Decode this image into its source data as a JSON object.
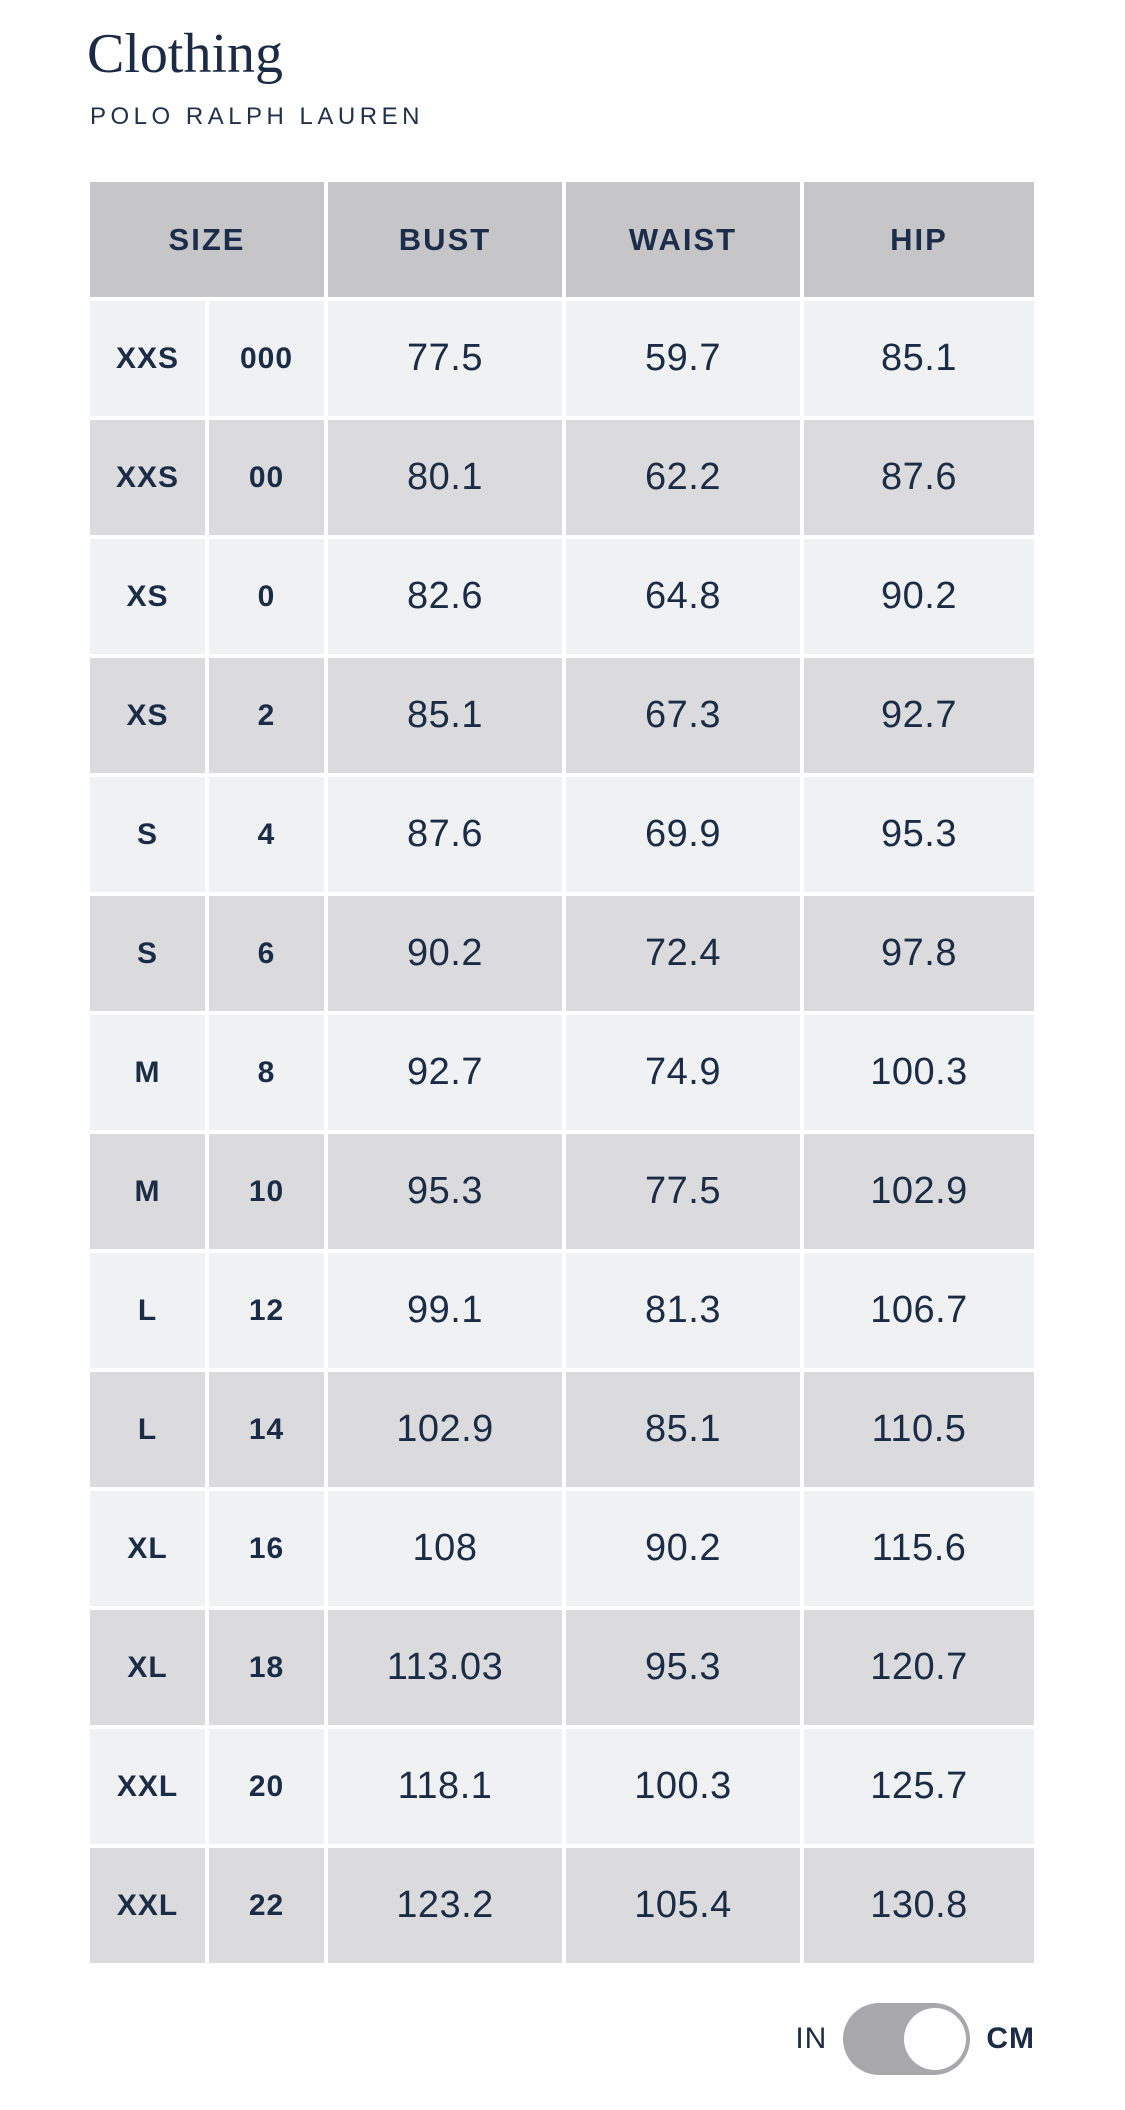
{
  "page": {
    "title": "Clothing",
    "brand": "POLO RALPH LAUREN"
  },
  "table": {
    "headers": {
      "size": "SIZE",
      "bust": "BUST",
      "waist": "WAIST",
      "hip": "HIP"
    },
    "rows": [
      {
        "size_alpha": "XXS",
        "size_num": "000",
        "bust": "77.5",
        "waist": "59.7",
        "hip": "85.1"
      },
      {
        "size_alpha": "XXS",
        "size_num": "00",
        "bust": "80.1",
        "waist": "62.2",
        "hip": "87.6"
      },
      {
        "size_alpha": "XS",
        "size_num": "0",
        "bust": "82.6",
        "waist": "64.8",
        "hip": "90.2"
      },
      {
        "size_alpha": "XS",
        "size_num": "2",
        "bust": "85.1",
        "waist": "67.3",
        "hip": "92.7"
      },
      {
        "size_alpha": "S",
        "size_num": "4",
        "bust": "87.6",
        "waist": "69.9",
        "hip": "95.3"
      },
      {
        "size_alpha": "S",
        "size_num": "6",
        "bust": "90.2",
        "waist": "72.4",
        "hip": "97.8"
      },
      {
        "size_alpha": "M",
        "size_num": "8",
        "bust": "92.7",
        "waist": "74.9",
        "hip": "100.3"
      },
      {
        "size_alpha": "M",
        "size_num": "10",
        "bust": "95.3",
        "waist": "77.5",
        "hip": "102.9"
      },
      {
        "size_alpha": "L",
        "size_num": "12",
        "bust": "99.1",
        "waist": "81.3",
        "hip": "106.7"
      },
      {
        "size_alpha": "L",
        "size_num": "14",
        "bust": "102.9",
        "waist": "85.1",
        "hip": "110.5"
      },
      {
        "size_alpha": "XL",
        "size_num": "16",
        "bust": "108",
        "waist": "90.2",
        "hip": "115.6"
      },
      {
        "size_alpha": "XL",
        "size_num": "18",
        "bust": "113.03",
        "waist": "95.3",
        "hip": "120.7"
      },
      {
        "size_alpha": "XXL",
        "size_num": "20",
        "bust": "118.1",
        "waist": "100.3",
        "hip": "125.7"
      },
      {
        "size_alpha": "XXL",
        "size_num": "22",
        "bust": "123.2",
        "waist": "105.4",
        "hip": "130.8"
      }
    ]
  },
  "unit_toggle": {
    "left_label": "IN",
    "right_label": "CM",
    "selected": "CM"
  },
  "colors": {
    "text_navy": "#1b2c47",
    "header_bg": "#c6c6c8",
    "row_light_bg": "#f0f1f2",
    "row_dark_bg": "#dbdbdd",
    "toggle_track": "#a8a8aa",
    "toggle_knob": "#ffffff",
    "page_bg": "#ffffff"
  }
}
